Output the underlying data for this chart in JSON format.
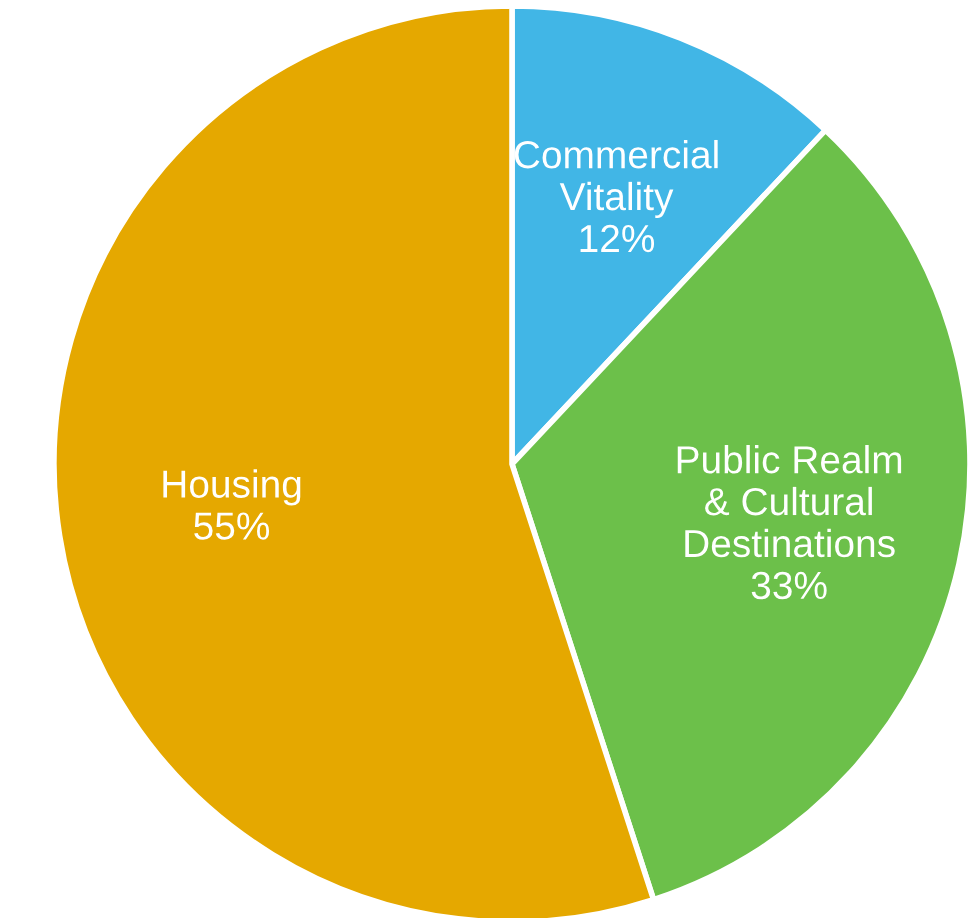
{
  "chart_data": {
    "type": "pie",
    "categories": [
      "Commercial\nVitality",
      "Public Realm\n& Cultural\nDestinations",
      "Housing"
    ],
    "values": [
      12,
      33,
      55
    ],
    "value_labels": [
      "12%",
      "33%",
      "55%"
    ],
    "colors": [
      "#41b6e6",
      "#6cc04a",
      "#e5a800"
    ],
    "legend": false
  }
}
